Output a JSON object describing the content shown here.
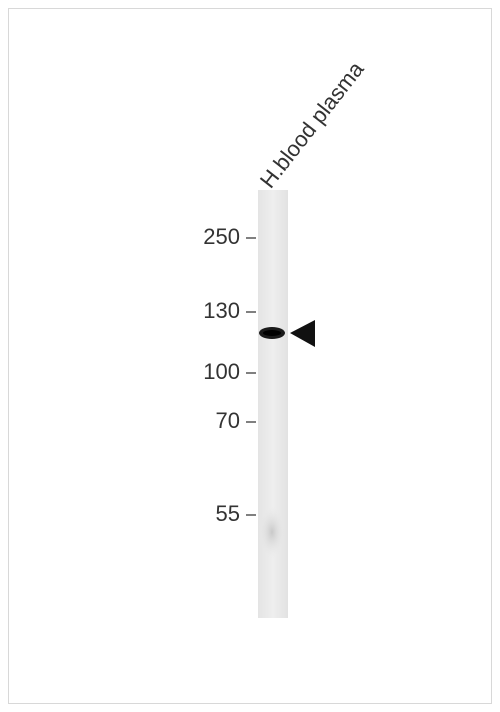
{
  "lane_label": "H.blood plasma",
  "markers": [
    "250",
    "130",
    "100",
    "70",
    "55"
  ]
}
